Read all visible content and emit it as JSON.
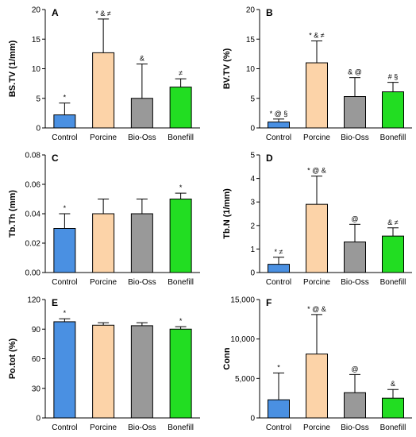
{
  "chart_data": [
    {
      "type": "bar",
      "panel_label": "A",
      "ylabel": "BS.TV (1/mm)",
      "categories": [
        "Control",
        "Porcine",
        "Bio-Oss",
        "Bonefill"
      ],
      "values": [
        2.2,
        12.7,
        5.0,
        6.9
      ],
      "errors": [
        2.0,
        5.7,
        5.8,
        1.4
      ],
      "ylim": [
        0,
        20
      ],
      "yticks": [
        "0",
        "5",
        "10",
        "15",
        "20"
      ],
      "annotations": [
        "*",
        "* & ≠",
        "&",
        "≠"
      ],
      "colors": [
        "#4a90e2",
        "#fcd3a8",
        "#999999",
        "#22dd22"
      ]
    },
    {
      "type": "bar",
      "panel_label": "B",
      "ylabel": "BV.TV (%)",
      "categories": [
        "Control",
        "Porcine",
        "Bio-Oss",
        "Bonefill"
      ],
      "values": [
        1.0,
        11.0,
        5.3,
        6.1
      ],
      "errors": [
        0.5,
        3.7,
        3.2,
        1.6
      ],
      "ylim": [
        0,
        20
      ],
      "yticks": [
        "0",
        "5",
        "10",
        "15",
        "20"
      ],
      "annotations": [
        "* @ §",
        "* & ≠",
        "& @",
        "# §"
      ],
      "colors": [
        "#4a90e2",
        "#fcd3a8",
        "#999999",
        "#22dd22"
      ]
    },
    {
      "type": "bar",
      "panel_label": "C",
      "ylabel": "Tb.Th (mm)",
      "categories": [
        "Control",
        "Porcine",
        "Bio-Oss",
        "Bonefill"
      ],
      "values": [
        0.03,
        0.04,
        0.04,
        0.05
      ],
      "errors": [
        0.01,
        0.01,
        0.01,
        0.004
      ],
      "ylim": [
        0,
        0.08
      ],
      "yticks": [
        "0.00",
        "0.02",
        "0.04",
        "0.06",
        "0.08"
      ],
      "annotations": [
        "*",
        "",
        "",
        "*"
      ],
      "colors": [
        "#4a90e2",
        "#fcd3a8",
        "#999999",
        "#22dd22"
      ]
    },
    {
      "type": "bar",
      "panel_label": "D",
      "ylabel": "Tb.N (1/mm)",
      "categories": [
        "Control",
        "Porcine",
        "Bio-Oss",
        "Bonefill"
      ],
      "values": [
        0.35,
        2.9,
        1.3,
        1.55
      ],
      "errors": [
        0.3,
        1.2,
        0.75,
        0.35
      ],
      "ylim": [
        0,
        5
      ],
      "yticks": [
        "0",
        "1",
        "2",
        "3",
        "4",
        "5"
      ],
      "annotations": [
        "* ≠",
        "* @ &",
        "@",
        "& ≠"
      ],
      "colors": [
        "#4a90e2",
        "#fcd3a8",
        "#999999",
        "#22dd22"
      ]
    },
    {
      "type": "bar",
      "panel_label": "E",
      "ylabel": "Po.tot (%)",
      "categories": [
        "Control",
        "Porcine",
        "Bio-Oss",
        "Bonefill"
      ],
      "values": [
        97.5,
        94,
        93.5,
        90
      ],
      "errors": [
        3,
        2.5,
        3,
        2.5
      ],
      "ylim": [
        0,
        120
      ],
      "yticks": [
        "0",
        "30",
        "60",
        "90",
        "120"
      ],
      "annotations": [
        "*",
        "",
        "",
        "*"
      ],
      "colors": [
        "#4a90e2",
        "#fcd3a8",
        "#999999",
        "#22dd22"
      ]
    },
    {
      "type": "bar",
      "panel_label": "F",
      "ylabel": "Conn",
      "categories": [
        "Control",
        "Porcine",
        "Bio-Oss",
        "Bonefill"
      ],
      "values": [
        2300,
        8100,
        3200,
        2500
      ],
      "errors": [
        3400,
        5000,
        2300,
        1100
      ],
      "ylim": [
        0,
        15000
      ],
      "yticks": [
        "0",
        "5,000",
        "10,000",
        "15,000"
      ],
      "annotations": [
        "*",
        "* @ &",
        "@",
        "&"
      ],
      "colors": [
        "#4a90e2",
        "#fcd3a8",
        "#999999",
        "#22dd22"
      ]
    }
  ]
}
